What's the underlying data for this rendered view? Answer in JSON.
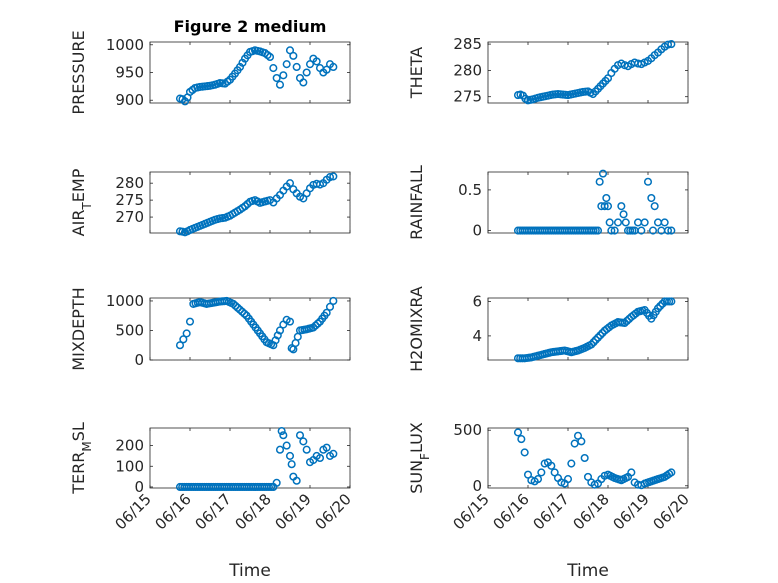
{
  "marker_color": "#0072BD",
  "chart_data": [
    {
      "type": "scatter",
      "title": "Figure 2 medium",
      "ylabel": "PRESSURE",
      "ylabel_sub": null,
      "xlabel": "",
      "xlim": [
        "06/15",
        "06/20"
      ],
      "ylim": [
        895,
        1005
      ],
      "yticks": [
        900,
        950,
        1000
      ],
      "xticks": [
        "06/15",
        "06/16",
        "06/17",
        "06/18",
        "06/19",
        "06/20"
      ],
      "show_xtick_labels": false,
      "grid": true,
      "x": [
        "06/15 18:00",
        "06/15 19:30",
        "06/15 21:00",
        "06/15 22:30",
        "06/16 00:00",
        "06/16 03:00",
        "06/16 06:00",
        "06/16 09:00",
        "06/16 12:00",
        "06/16 15:00",
        "06/16 18:00",
        "06/16 21:00",
        "06/17 00:00",
        "06/17 03:00",
        "06/17 06:00",
        "06/17 09:00",
        "06/17 12:00",
        "06/17 15:00",
        "06/17 18:00",
        "06/17 21:00",
        "06/18 00:00",
        "06/18 02:00",
        "06/18 04:00",
        "06/18 06:00",
        "06/18 08:00",
        "06/18 10:00",
        "06/18 12:00",
        "06/18 14:00",
        "06/18 16:00",
        "06/18 18:00",
        "06/18 20:00",
        "06/18 22:00",
        "06/19 00:00",
        "06/19 02:00",
        "06/19 04:00",
        "06/19 06:00",
        "06/19 08:00",
        "06/19 10:00",
        "06/19 12:00",
        "06/19 14:00"
      ],
      "y": [
        903,
        902,
        898,
        905,
        915,
        922,
        924,
        925,
        926,
        928,
        931,
        930,
        937,
        948,
        960,
        975,
        987,
        990,
        988,
        985,
        978,
        958,
        940,
        928,
        945,
        965,
        990,
        980,
        960,
        940,
        932,
        950,
        965,
        975,
        970,
        958,
        950,
        955,
        965,
        960
      ]
    },
    {
      "type": "scatter",
      "title": "",
      "ylabel": "THETA",
      "ylabel_sub": null,
      "xlabel": "",
      "xlim": [
        "06/15",
        "06/20"
      ],
      "ylim": [
        273.8,
        285.4
      ],
      "yticks": [
        275,
        280,
        285
      ],
      "xticks": [
        "06/15",
        "06/16",
        "06/17",
        "06/18",
        "06/19",
        "06/20"
      ],
      "show_xtick_labels": false,
      "grid": true,
      "x": [
        "06/15 18:00",
        "06/15 19:30",
        "06/15 21:00",
        "06/15 22:30",
        "06/16 00:00",
        "06/16 03:00",
        "06/16 06:00",
        "06/16 09:00",
        "06/16 12:00",
        "06/16 15:00",
        "06/16 18:00",
        "06/16 21:00",
        "06/17 00:00",
        "06/17 03:00",
        "06/17 06:00",
        "06/17 09:00",
        "06/17 12:00",
        "06/17 15:00",
        "06/17 18:00",
        "06/17 21:00",
        "06/18 00:00",
        "06/18 02:00",
        "06/18 04:00",
        "06/18 06:00",
        "06/18 08:00",
        "06/18 10:00",
        "06/18 12:00",
        "06/18 14:00",
        "06/18 16:00",
        "06/18 18:00",
        "06/18 20:00",
        "06/18 22:00",
        "06/19 00:00",
        "06/19 02:00",
        "06/19 04:00",
        "06/19 06:00",
        "06/19 08:00",
        "06/19 10:00",
        "06/19 12:00",
        "06/19 14:00"
      ],
      "y": [
        275.3,
        275.4,
        275.2,
        274.6,
        274.3,
        274.5,
        274.8,
        275.0,
        275.2,
        275.4,
        275.5,
        275.4,
        275.3,
        275.5,
        275.7,
        275.9,
        276.0,
        275.5,
        276.5,
        277.5,
        278.5,
        279.5,
        280.3,
        281.0,
        281.3,
        281.0,
        280.8,
        281.2,
        281.5,
        281.3,
        281.2,
        281.5,
        281.8,
        282.3,
        282.9,
        283.4,
        284.0,
        284.5,
        284.9,
        285.0
      ]
    },
    {
      "type": "scatter",
      "title": "",
      "ylabel": "AIR",
      "ylabel_sub": "T",
      "ylabel_rest": "EMP",
      "xlabel": "",
      "xlim": [
        "06/15",
        "06/20"
      ],
      "ylim": [
        265.3,
        283.3
      ],
      "yticks": [
        270,
        275,
        280
      ],
      "xticks": [
        "06/15",
        "06/16",
        "06/17",
        "06/18",
        "06/19",
        "06/20"
      ],
      "show_xtick_labels": false,
      "grid": true,
      "x": [
        "06/15 18:00",
        "06/15 19:30",
        "06/15 21:00",
        "06/15 22:30",
        "06/16 00:00",
        "06/16 03:00",
        "06/16 06:00",
        "06/16 09:00",
        "06/16 12:00",
        "06/16 15:00",
        "06/16 18:00",
        "06/16 21:00",
        "06/17 00:00",
        "06/17 03:00",
        "06/17 06:00",
        "06/17 09:00",
        "06/17 12:00",
        "06/17 15:00",
        "06/17 18:00",
        "06/17 21:00",
        "06/18 00:00",
        "06/18 02:00",
        "06/18 04:00",
        "06/18 06:00",
        "06/18 08:00",
        "06/18 10:00",
        "06/18 12:00",
        "06/18 14:00",
        "06/18 16:00",
        "06/18 18:00",
        "06/18 20:00",
        "06/18 22:00",
        "06/19 00:00",
        "06/19 02:00",
        "06/19 04:00",
        "06/19 06:00",
        "06/19 08:00",
        "06/19 10:00",
        "06/19 12:00",
        "06/19 14:00"
      ],
      "y": [
        265.8,
        265.7,
        265.5,
        265.8,
        266.2,
        266.8,
        267.4,
        268.0,
        268.6,
        269.2,
        269.6,
        269.8,
        270.4,
        271.3,
        272.2,
        273.2,
        274.5,
        275.0,
        274.2,
        274.6,
        275.0,
        274.3,
        275.5,
        276.5,
        277.8,
        279.0,
        280.0,
        278.2,
        277.0,
        276.0,
        275.5,
        277.0,
        278.5,
        279.5,
        279.8,
        279.6,
        280.0,
        281.0,
        281.8,
        282.0
      ]
    },
    {
      "type": "scatter",
      "title": "",
      "ylabel": "RAINFALL",
      "ylabel_sub": null,
      "xlabel": "",
      "xlim": [
        "06/15",
        "06/20"
      ],
      "ylim": [
        -0.03,
        0.72
      ],
      "yticks": [
        0,
        0.5
      ],
      "xticks": [
        "06/15",
        "06/16",
        "06/17",
        "06/18",
        "06/19",
        "06/20"
      ],
      "show_xtick_labels": false,
      "grid": true,
      "x": [
        "06/15 18:00",
        "06/15 22:00",
        "06/16 02:00",
        "06/16 06:00",
        "06/16 10:00",
        "06/16 14:00",
        "06/16 18:00",
        "06/16 22:00",
        "06/17 02:00",
        "06/17 06:00",
        "06/17 10:00",
        "06/17 14:00",
        "06/17 18:00",
        "06/17 19:00",
        "06/17 20:00",
        "06/17 21:00",
        "06/17 22:00",
        "06/17 23:00",
        "06/18 00:00",
        "06/18 01:00",
        "06/18 02:00",
        "06/18 04:00",
        "06/18 06:00",
        "06/18 08:00",
        "06/18 12:00",
        "06/18 16:00",
        "06/18 18:00",
        "06/18 20:00",
        "06/18 22:00",
        "06/19 00:00",
        "06/19 02:00",
        "06/19 03:00",
        "06/19 04:00",
        "06/19 06:00",
        "06/19 08:00",
        "06/19 10:00",
        "06/19 12:00",
        "06/19 14:00"
      ],
      "y": [
        0,
        0,
        0,
        0,
        0,
        0,
        0,
        0,
        0,
        0,
        0,
        0,
        0,
        0.6,
        0.3,
        0.7,
        0.3,
        0.4,
        0.3,
        0.1,
        0,
        0,
        0.1,
        0.3,
        0,
        0,
        0.1,
        0,
        0.1,
        0.6,
        0.4,
        0,
        0.3,
        0.1,
        0,
        0.1,
        0,
        0
      ]
    },
    {
      "type": "scatter",
      "title": "",
      "ylabel": "MIXDEPTH",
      "ylabel_sub": null,
      "xlabel": "",
      "xlim": [
        "06/15",
        "06/20"
      ],
      "ylim": [
        0,
        1050
      ],
      "yticks": [
        0,
        500,
        1000
      ],
      "xticks": [
        "06/15",
        "06/16",
        "06/17",
        "06/18",
        "06/19",
        "06/20"
      ],
      "show_xtick_labels": false,
      "grid": true,
      "x": [
        "06/15 18:00",
        "06/15 20:00",
        "06/15 22:00",
        "06/16 00:00",
        "06/16 02:00",
        "06/16 06:00",
        "06/16 10:00",
        "06/16 14:00",
        "06/16 18:00",
        "06/16 22:00",
        "06/17 02:00",
        "06/17 06:00",
        "06/17 10:00",
        "06/17 14:00",
        "06/17 18:00",
        "06/17 22:00",
        "06/18 02:00",
        "06/18 06:00",
        "06/18 08:00",
        "06/18 10:00",
        "06/18 12:00",
        "06/18 13:00",
        "06/18 14:00",
        "06/18 18:00",
        "06/18 22:00",
        "06/19 02:00",
        "06/19 06:00",
        "06/19 10:00",
        "06/19 12:00",
        "06/19 14:00"
      ],
      "y": [
        250,
        350,
        450,
        650,
        950,
        980,
        950,
        970,
        990,
        1000,
        950,
        850,
        750,
        600,
        450,
        300,
        250,
        500,
        600,
        680,
        650,
        200,
        180,
        500,
        520,
        550,
        650,
        800,
        900,
        1000
      ]
    },
    {
      "type": "scatter",
      "title": "",
      "ylabel": "H2OMIXRA",
      "ylabel_sub": null,
      "xlabel": "",
      "xlim": [
        "06/15",
        "06/20"
      ],
      "ylim": [
        2.6,
        6.2
      ],
      "yticks": [
        4,
        6
      ],
      "xticks": [
        "06/15",
        "06/16",
        "06/17",
        "06/18",
        "06/19",
        "06/20"
      ],
      "show_xtick_labels": false,
      "grid": true,
      "x": [
        "06/15 18:00",
        "06/15 22:00",
        "06/16 02:00",
        "06/16 06:00",
        "06/16 10:00",
        "06/16 14:00",
        "06/16 18:00",
        "06/16 22:00",
        "06/17 02:00",
        "06/17 06:00",
        "06/17 10:00",
        "06/17 14:00",
        "06/17 18:00",
        "06/17 22:00",
        "06/18 02:00",
        "06/18 06:00",
        "06/18 10:00",
        "06/18 14:00",
        "06/18 18:00",
        "06/18 22:00",
        "06/19 02:00",
        "06/19 06:00",
        "06/19 10:00",
        "06/19 14:00"
      ],
      "y": [
        2.7,
        2.7,
        2.75,
        2.85,
        2.95,
        3.05,
        3.1,
        3.15,
        3.05,
        3.15,
        3.3,
        3.5,
        3.9,
        4.3,
        4.6,
        4.8,
        4.75,
        5.1,
        5.4,
        5.5,
        5.0,
        5.6,
        6.0,
        6.0
      ]
    },
    {
      "type": "scatter",
      "title": "",
      "ylabel": "TERR",
      "ylabel_sub": "M",
      "ylabel_rest": "SL",
      "xlabel": "Time",
      "xlim": [
        "06/15",
        "06/20"
      ],
      "ylim": [
        -5,
        285
      ],
      "yticks": [
        0,
        100,
        200
      ],
      "xticks": [
        "06/15",
        "06/16",
        "06/17",
        "06/18",
        "06/19",
        "06/20"
      ],
      "show_xtick_labels": true,
      "grid": true,
      "x": [
        "06/15 18:00",
        "06/15 22:00",
        "06/16 02:00",
        "06/16 06:00",
        "06/16 10:00",
        "06/16 14:00",
        "06/16 18:00",
        "06/16 22:00",
        "06/17 02:00",
        "06/17 06:00",
        "06/17 10:00",
        "06/17 14:00",
        "06/17 18:00",
        "06/17 22:00",
        "06/18 02:00",
        "06/18 04:00",
        "06/18 06:00",
        "06/18 07:00",
        "06/18 08:00",
        "06/18 10:00",
        "06/18 12:00",
        "06/18 13:00",
        "06/18 14:00",
        "06/18 16:00",
        "06/18 18:00",
        "06/18 20:00",
        "06/18 22:00",
        "06/19 00:00",
        "06/19 02:00",
        "06/19 04:00",
        "06/19 06:00",
        "06/19 08:00",
        "06/19 10:00",
        "06/19 12:00",
        "06/19 14:00"
      ],
      "y": [
        0,
        0,
        0,
        0,
        0,
        0,
        0,
        0,
        0,
        0,
        0,
        0,
        0,
        0,
        0,
        20,
        180,
        270,
        250,
        200,
        150,
        110,
        50,
        30,
        250,
        220,
        180,
        120,
        130,
        150,
        140,
        180,
        190,
        150,
        160
      ]
    },
    {
      "type": "scatter",
      "title": "",
      "ylabel": "SUN",
      "ylabel_sub": "F",
      "ylabel_rest": "LUX",
      "xlabel": "Time",
      "xlim": [
        "06/15",
        "06/20"
      ],
      "ylim": [
        -20,
        520
      ],
      "yticks": [
        0,
        500
      ],
      "xticks": [
        "06/15",
        "06/16",
        "06/17",
        "06/18",
        "06/19",
        "06/20"
      ],
      "show_xtick_labels": true,
      "grid": true,
      "x": [
        "06/15 18:00",
        "06/15 20:00",
        "06/15 22:00",
        "06/16 00:00",
        "06/16 02:00",
        "06/16 04:00",
        "06/16 06:00",
        "06/16 08:00",
        "06/16 10:00",
        "06/16 12:00",
        "06/16 14:00",
        "06/16 16:00",
        "06/16 18:00",
        "06/16 20:00",
        "06/16 22:00",
        "06/17 00:00",
        "06/17 02:00",
        "06/17 04:00",
        "06/17 06:00",
        "06/17 08:00",
        "06/17 10:00",
        "06/17 12:00",
        "06/17 14:00",
        "06/17 16:00",
        "06/17 18:00",
        "06/17 20:00",
        "06/17 22:00",
        "06/18 00:00",
        "06/18 04:00",
        "06/18 08:00",
        "06/18 12:00",
        "06/18 14:00",
        "06/18 16:00",
        "06/18 18:00",
        "06/18 20:00",
        "06/18 22:00",
        "06/19 02:00",
        "06/19 06:00",
        "06/19 10:00",
        "06/19 14:00"
      ],
      "y": [
        480,
        420,
        300,
        100,
        50,
        40,
        60,
        120,
        200,
        210,
        180,
        120,
        70,
        30,
        20,
        60,
        200,
        380,
        450,
        400,
        250,
        80,
        30,
        10,
        20,
        60,
        90,
        100,
        70,
        50,
        80,
        120,
        30,
        10,
        5,
        20,
        40,
        60,
        80,
        120
      ]
    }
  ]
}
